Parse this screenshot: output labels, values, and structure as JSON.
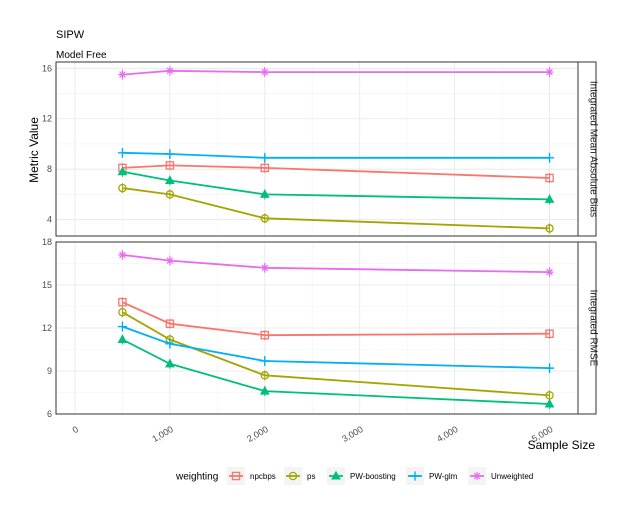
{
  "chart_data": {
    "type": "line",
    "title": "SIPW",
    "subtitle": "Model Free",
    "ylabel": "Metric Value",
    "xlabel": "Sample Size",
    "xlim": [
      -200,
      5300
    ],
    "x_ticks": [
      0,
      1000,
      2000,
      3000,
      4000,
      5000
    ],
    "x_tick_labels": [
      "0",
      "1,000",
      "2,000",
      "3,000",
      "4,000",
      "5,000"
    ],
    "x": [
      500,
      1000,
      2000,
      5000
    ],
    "legend": {
      "title": "weighting",
      "position": "bottom",
      "entries": [
        "npcbps",
        "ps",
        "PW-boosting",
        "PW-glm",
        "Unweighted"
      ]
    },
    "colors": {
      "npcbps": "#F8766D",
      "ps": "#A3A500",
      "PW-boosting": "#00BF7D",
      "PW-glm": "#00B0F6",
      "Unweighted": "#E76BF3"
    },
    "markers": {
      "npcbps": "square",
      "ps": "circle",
      "PW-boosting": "triangle",
      "PW-glm": "plus",
      "Unweighted": "asterisk"
    },
    "grid": true,
    "panels": [
      {
        "strip": "Integrated Mean Absolute Bias",
        "ylim": [
          2.7,
          16.5
        ],
        "y_ticks": [
          4,
          8,
          12,
          16
        ],
        "series": [
          {
            "name": "npcbps",
            "values": [
              8.1,
              8.3,
              8.1,
              7.3
            ]
          },
          {
            "name": "ps",
            "values": [
              6.5,
              6.0,
              4.1,
              3.3
            ]
          },
          {
            "name": "PW-boosting",
            "values": [
              7.8,
              7.1,
              6.0,
              5.6
            ]
          },
          {
            "name": "PW-glm",
            "values": [
              9.3,
              9.2,
              8.9,
              8.9
            ]
          },
          {
            "name": "Unweighted",
            "values": [
              15.5,
              15.8,
              15.7,
              15.7
            ]
          }
        ]
      },
      {
        "strip": "Integrated RMSE",
        "ylim": [
          6,
          18
        ],
        "y_ticks": [
          6,
          9,
          12,
          15,
          18
        ],
        "series": [
          {
            "name": "npcbps",
            "values": [
              13.8,
              12.3,
              11.5,
              11.6
            ]
          },
          {
            "name": "ps",
            "values": [
              13.1,
              11.2,
              8.7,
              7.3
            ]
          },
          {
            "name": "PW-boosting",
            "values": [
              11.2,
              9.5,
              7.6,
              6.7
            ]
          },
          {
            "name": "PW-glm",
            "values": [
              12.1,
              10.9,
              9.7,
              9.2
            ]
          },
          {
            "name": "Unweighted",
            "values": [
              17.1,
              16.7,
              16.2,
              15.9
            ]
          }
        ]
      }
    ]
  }
}
